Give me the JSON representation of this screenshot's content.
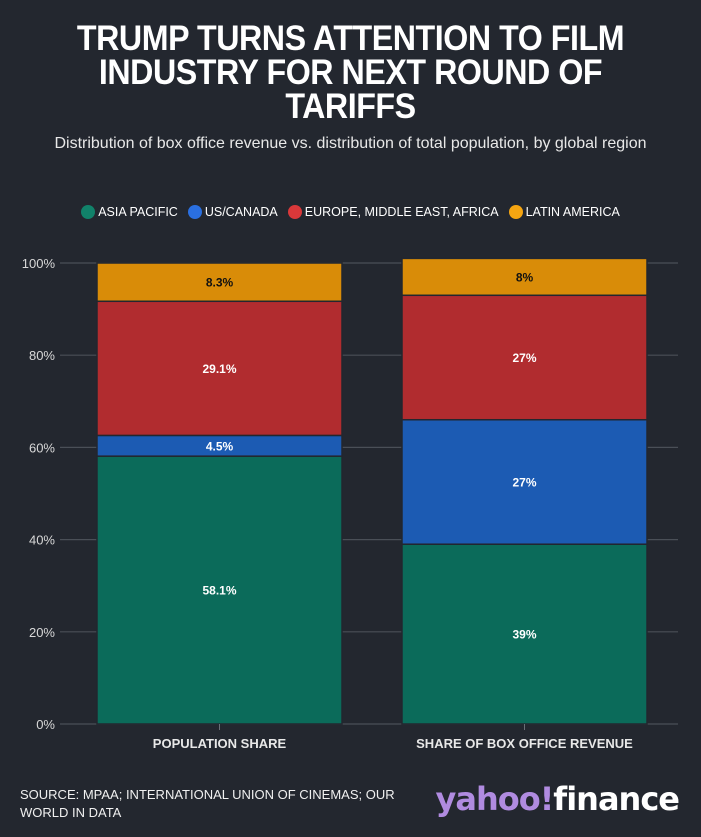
{
  "title": "TRUMP TURNS ATTENTION TO FILM INDUSTRY FOR NEXT ROUND OF TARIFFS",
  "subtitle": "Distribution of box office revenue vs. distribution of total population, by global region",
  "legend": [
    {
      "label": "ASIA PACIFIC",
      "color": "#0b6b5a",
      "dot": "#11826a"
    },
    {
      "label": "US/CANADA",
      "color": "#1c5bb3",
      "dot": "#2a6fe0"
    },
    {
      "label": "EUROPE, MIDDLE EAST, AFRICA",
      "color": "#b12c2f",
      "dot": "#d9383a"
    },
    {
      "label": "LATIN AMERICA",
      "color": "#d98c08",
      "dot": "#f5a511"
    }
  ],
  "source": "SOURCE: MPAA; INTERNATIONAL UNION OF CINEMAS; OUR WORLD IN DATA",
  "logo": {
    "part1": "yahoo!",
    "part2": "finance"
  },
  "chart_data": {
    "type": "bar",
    "stacked": true,
    "title": "TRUMP TURNS ATTENTION TO FILM INDUSTRY FOR NEXT ROUND OF TARIFFS",
    "subtitle": "Distribution of box office revenue vs. distribution of total population, by global region",
    "xlabel": "",
    "ylabel": "",
    "categories": [
      "POPULATION SHARE",
      "SHARE OF BOX OFFICE REVENUE"
    ],
    "series": [
      {
        "name": "ASIA PACIFIC",
        "values": [
          58.1,
          39
        ],
        "labels": [
          "58.1%",
          "39%"
        ],
        "color": "#0b6b5a",
        "label_color": "#ffffff"
      },
      {
        "name": "US/CANADA",
        "values": [
          4.5,
          27
        ],
        "labels": [
          "4.5%",
          "27%"
        ],
        "color": "#1c5bb3",
        "label_color": "#ffffff"
      },
      {
        "name": "EUROPE, MIDDLE EAST, AFRICA",
        "values": [
          29.1,
          27
        ],
        "labels": [
          "29.1%",
          "27%"
        ],
        "color": "#b12c2f",
        "label_color": "#ffffff"
      },
      {
        "name": "LATIN AMERICA",
        "values": [
          8.3,
          8
        ],
        "labels": [
          "8.3%",
          "8%"
        ],
        "color": "#d98c08",
        "label_color": "#111111"
      }
    ],
    "ylim": [
      0,
      100
    ],
    "yticks": [
      0,
      20,
      40,
      60,
      80,
      100
    ],
    "ytick_labels": [
      "0%",
      "20%",
      "40%",
      "60%",
      "80%",
      "100%"
    ],
    "grid": true,
    "legend_position": "top-center"
  }
}
